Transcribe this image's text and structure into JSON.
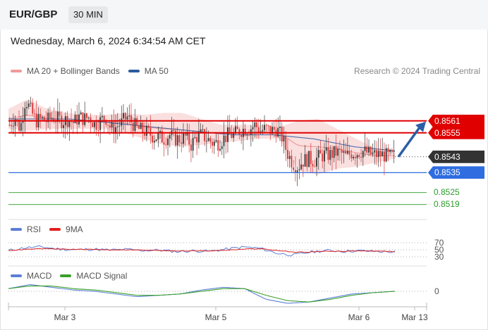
{
  "header": {
    "symbol": "EUR/GBP",
    "timeframe": "30 MIN"
  },
  "datetime": "Wednesday, March 6, 2024 6:34:54 AM CET",
  "copyright": "Research © 2024 Trading Central",
  "legend_main": [
    {
      "label": "MA 20 + Bollinger Bands",
      "color": "#f19a9a"
    },
    {
      "label": "MA 50",
      "color": "#2c5aa0"
    }
  ],
  "legend_rsi": [
    {
      "label": "RSI",
      "color": "#5b7fd6"
    },
    {
      "label": "9MA",
      "color": "#e02020"
    }
  ],
  "legend_macd": [
    {
      "label": "MACD",
      "color": "#5b7fd6"
    },
    {
      "label": "MACD Signal",
      "color": "#3aa02a"
    }
  ],
  "colors": {
    "resistance": "#e00000",
    "support": "#2f6de0",
    "target": "#2a9a2a",
    "current": "#333333",
    "arrow": "#2b5ea6",
    "up": "#3c3c3c",
    "down": "#d83a3a"
  },
  "chart_data": [
    {
      "type": "candlestick",
      "name": "price",
      "x_labels": [
        "Mar 3",
        "Mar 5",
        "Mar 6",
        "Mar 13"
      ],
      "ylim": [
        0.8515,
        0.858
      ],
      "current_price": "0.8543",
      "levels": [
        {
          "value": "0.8561",
          "kind": "resistance"
        },
        {
          "value": "0.8555",
          "kind": "resistance"
        },
        {
          "value": "0.8535",
          "kind": "support"
        },
        {
          "value": "0.8525",
          "kind": "target"
        },
        {
          "value": "0.8519",
          "kind": "target"
        }
      ],
      "close_path": [
        0.8559,
        0.8563,
        0.8557,
        0.8572,
        0.8566,
        0.8561,
        0.8562,
        0.8561,
        0.8563,
        0.8562,
        0.8561,
        0.8562,
        0.856,
        0.8563,
        0.8562,
        0.8563,
        0.8559,
        0.8561,
        0.8563,
        0.8557,
        0.8558,
        0.856,
        0.8563,
        0.856,
        0.8557,
        0.8556,
        0.8555,
        0.8553,
        0.8553,
        0.8552,
        0.8554,
        0.8552,
        0.8552,
        0.8553,
        0.8549,
        0.8553,
        0.8554,
        0.8552,
        0.855,
        0.855,
        0.8552,
        0.8554,
        0.8554,
        0.8556,
        0.8557,
        0.8557,
        0.8559,
        0.8556,
        0.8557,
        0.8556,
        0.8557,
        0.8553,
        0.8545,
        0.854,
        0.8538,
        0.8541,
        0.8542,
        0.8541,
        0.8543,
        0.8544,
        0.8544,
        0.8545,
        0.8545,
        0.8543,
        0.8545,
        0.8545,
        0.8546,
        0.8545,
        0.8544,
        0.8544,
        0.8544,
        0.8543,
        0.8543
      ],
      "ma50_path": [
        0.8562,
        0.8562,
        0.8562,
        0.8562,
        0.8561,
        0.856,
        0.8559,
        0.8558,
        0.8557,
        0.8556,
        0.8555,
        0.8554,
        0.8554,
        0.8554,
        0.8553,
        0.8552,
        0.855,
        0.8548,
        0.8547,
        0.8546
      ],
      "bb_upper": [
        0.8567,
        0.8572,
        0.8567,
        0.8565,
        0.8564,
        0.8564,
        0.8565,
        0.8564,
        0.8565,
        0.8565,
        0.8562,
        0.8559,
        0.8559,
        0.8559,
        0.8558,
        0.8561,
        0.8562,
        0.8557,
        0.8552,
        0.8547,
        0.8545
      ],
      "bb_lower": [
        0.8557,
        0.8556,
        0.8557,
        0.8557,
        0.8557,
        0.8557,
        0.8555,
        0.8552,
        0.8549,
        0.8548,
        0.8549,
        0.855,
        0.8551,
        0.8552,
        0.8552,
        0.8536,
        0.8534,
        0.8537,
        0.8538,
        0.854,
        0.8542
      ]
    },
    {
      "type": "line",
      "name": "RSI",
      "ylim": [
        20,
        80
      ],
      "reference_levels": [
        "70",
        "50",
        "30"
      ],
      "series": [
        {
          "name": "RSI",
          "values": [
            48,
            56,
            58,
            52,
            50,
            52,
            49,
            51,
            48,
            49,
            45,
            47,
            46,
            52,
            58,
            54,
            40,
            35,
            44,
            48,
            46,
            47,
            45,
            44
          ]
        },
        {
          "name": "9MA",
          "values": [
            48,
            51,
            53,
            52,
            51,
            51,
            50,
            50,
            49,
            48,
            47,
            47,
            47,
            49,
            52,
            53,
            48,
            43,
            44,
            46,
            46,
            47,
            46,
            45
          ]
        }
      ]
    },
    {
      "type": "line",
      "name": "MACD",
      "reference_levels": [
        "0"
      ],
      "series": [
        {
          "name": "MACD",
          "values": [
            0.0002,
            0.0005,
            0.0003,
            0.0001,
            0.0,
            -0.0002,
            -0.0004,
            -0.0003,
            -0.0002,
            0.0001,
            0.0003,
            0.0002,
            -0.0006,
            -0.0009,
            -0.0008,
            -0.0005,
            -0.0002,
            -0.0001,
            0.0
          ]
        },
        {
          "name": "MACD Signal",
          "values": [
            0.0002,
            0.0004,
            0.0004,
            0.0002,
            0.0001,
            -0.0001,
            -0.0003,
            -0.0003,
            -0.0002,
            0.0,
            0.0002,
            0.0002,
            -0.0003,
            -0.0007,
            -0.0008,
            -0.0006,
            -0.0003,
            -0.0001,
            0.0
          ]
        }
      ]
    }
  ]
}
